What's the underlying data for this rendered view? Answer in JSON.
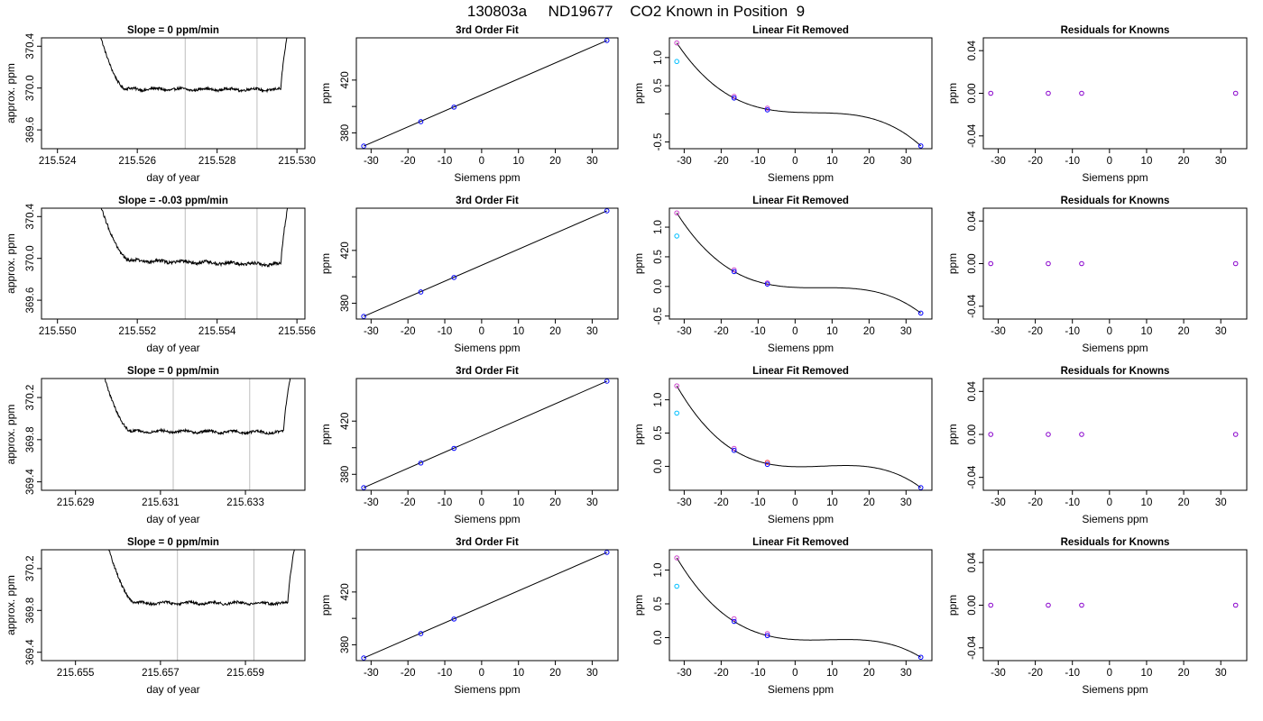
{
  "title": "130803a     ND19677    CO2 Known in Position  9",
  "colors": {
    "trace": "#000000",
    "vline": "#bebebe",
    "fit": "#000000",
    "point_blue": "#0000ff",
    "point_cyan": "#00bfff",
    "point_magenta": "#cc44cc",
    "point_purple": "#8800cc",
    "point_red": "#ff3333"
  },
  "chart_data": [
    {
      "row": 0,
      "panel": "trace",
      "type": "line",
      "title": "Slope =  0  ppm/min",
      "xlabel": "day of year",
      "ylabel": "approx. ppm",
      "xlim": [
        215.5236,
        215.5302
      ],
      "ylim": [
        369.42,
        370.48
      ],
      "xticks": [
        215.524,
        215.526,
        215.528,
        215.53
      ],
      "xticklabels": [
        "215.524",
        "215.526",
        "215.528",
        "215.530"
      ],
      "yticks": [
        369.6,
        370.0,
        370.4
      ],
      "yticklabels": [
        "369.6",
        "370.0",
        "370.4"
      ],
      "x_start": 215.525,
      "x_end": 215.5298,
      "x_plateau_start": 215.5257,
      "x_plateau_end": 215.5296,
      "plateau_level": 369.99,
      "noise": 0.012,
      "drift": -0.005,
      "trace_top": 370.6,
      "vlines": [
        215.5272,
        215.529
      ]
    },
    {
      "row": 0,
      "panel": "fit",
      "type": "scatter+line",
      "title": "3rd Order Fit",
      "xlabel": "Siemens ppm",
      "ylabel": "ppm",
      "xlim": [
        -34,
        37
      ],
      "ylim": [
        368,
        452
      ],
      "xticks": [
        -30,
        -20,
        -10,
        0,
        10,
        20,
        30
      ],
      "xticklabels": [
        "-30",
        "-20",
        "-10",
        "0",
        "10",
        "20",
        "30"
      ],
      "yticks": [
        380,
        400,
        420
      ],
      "yticklabels": [
        "380",
        "",
        "420"
      ],
      "points": [
        {
          "x": -32,
          "y": 370.0
        },
        {
          "x": -16.5,
          "y": 388.5
        },
        {
          "x": -7.5,
          "y": 399.5
        },
        {
          "x": 34,
          "y": 450.0
        }
      ],
      "line": [
        [
          -32,
          370.0
        ],
        [
          34,
          450.0
        ]
      ]
    },
    {
      "row": 0,
      "panel": "linear_removed",
      "type": "scatter+line",
      "title": "Linear Fit Removed",
      "xlabel": "Siemens ppm",
      "ylabel": "ppm",
      "xlim": [
        -34,
        37
      ],
      "ylim": [
        -0.62,
        1.35
      ],
      "xticks": [
        -30,
        -20,
        -10,
        0,
        10,
        20,
        30
      ],
      "xticklabels": [
        "-30",
        "-20",
        "-10",
        "0",
        "10",
        "20",
        "30"
      ],
      "yticks": [
        -0.5,
        0.0,
        0.5,
        1.0
      ],
      "yticklabels": [
        "-0.5",
        "",
        "0.5",
        "1.0"
      ],
      "curve": [
        [
          -32,
          1.26
        ],
        [
          -16.5,
          0.28
        ],
        [
          -7.5,
          0.08
        ],
        [
          34,
          -0.57
        ]
      ],
      "points": [
        {
          "x": -32,
          "y": 1.26,
          "c": "point_magenta"
        },
        {
          "x": -32,
          "y": 0.93,
          "c": "point_cyan"
        },
        {
          "x": -16.5,
          "y": 0.31,
          "c": "point_magenta"
        },
        {
          "x": -16.5,
          "y": 0.28,
          "c": "point_blue"
        },
        {
          "x": -7.5,
          "y": 0.1,
          "c": "point_magenta"
        },
        {
          "x": -7.5,
          "y": 0.07,
          "c": "point_blue"
        },
        {
          "x": 34,
          "y": -0.57,
          "c": "point_blue"
        }
      ]
    },
    {
      "row": 0,
      "panel": "residuals",
      "type": "scatter",
      "title": "Residuals for Knowns",
      "xlabel": "Siemens ppm",
      "ylabel": "ppm",
      "xlim": [
        -34,
        37
      ],
      "ylim": [
        -0.052,
        0.052
      ],
      "xticks": [
        -30,
        -20,
        -10,
        0,
        10,
        20,
        30
      ],
      "xticklabels": [
        "-30",
        "-20",
        "-10",
        "0",
        "10",
        "20",
        "30"
      ],
      "yticks": [
        -0.04,
        0.0,
        0.04
      ],
      "yticklabels": [
        "-0.04",
        "0.00",
        "0.04"
      ],
      "points": [
        {
          "x": -32,
          "y": 0
        },
        {
          "x": -16.5,
          "y": 0
        },
        {
          "x": -7.5,
          "y": 0
        },
        {
          "x": 34,
          "y": 0
        }
      ]
    },
    {
      "row": 1,
      "panel": "trace",
      "type": "line",
      "title": "Slope =  -0.03  ppm/min",
      "xlabel": "day of year",
      "ylabel": "approx. ppm",
      "xlim": [
        215.5496,
        215.5562
      ],
      "ylim": [
        369.42,
        370.48
      ],
      "xticks": [
        215.55,
        215.552,
        215.554,
        215.556
      ],
      "xticklabels": [
        "215.550",
        "215.552",
        "215.554",
        "215.556"
      ],
      "yticks": [
        369.6,
        370.0,
        370.4
      ],
      "yticklabels": [
        "369.6",
        "370.0",
        "370.4"
      ],
      "x_start": 215.551,
      "x_end": 215.5558,
      "x_plateau_start": 215.5518,
      "x_plateau_end": 215.5556,
      "plateau_level": 369.98,
      "noise": 0.015,
      "drift": -0.04,
      "trace_top": 370.6,
      "vlines": [
        215.5532,
        215.555
      ]
    },
    {
      "row": 1,
      "panel": "fit",
      "type": "scatter+line",
      "title": "3rd Order Fit",
      "xlabel": "Siemens ppm",
      "ylabel": "ppm",
      "xlim": [
        -34,
        37
      ],
      "ylim": [
        368,
        452
      ],
      "xticks": [
        -30,
        -20,
        -10,
        0,
        10,
        20,
        30
      ],
      "xticklabels": [
        "-30",
        "-20",
        "-10",
        "0",
        "10",
        "20",
        "30"
      ],
      "yticks": [
        380,
        400,
        420
      ],
      "yticklabels": [
        "380",
        "",
        "420"
      ],
      "points": [
        {
          "x": -32,
          "y": 370.0
        },
        {
          "x": -16.5,
          "y": 388.5
        },
        {
          "x": -7.5,
          "y": 399.5
        },
        {
          "x": 34,
          "y": 450.0
        }
      ],
      "line": [
        [
          -32,
          370.0
        ],
        [
          34,
          450.0
        ]
      ]
    },
    {
      "row": 1,
      "panel": "linear_removed",
      "type": "scatter+line",
      "title": "Linear Fit Removed",
      "xlabel": "Siemens ppm",
      "ylabel": "ppm",
      "xlim": [
        -34,
        37
      ],
      "ylim": [
        -0.55,
        1.32
      ],
      "xticks": [
        -30,
        -20,
        -10,
        0,
        10,
        20,
        30
      ],
      "xticklabels": [
        "-30",
        "-20",
        "-10",
        "0",
        "10",
        "20",
        "30"
      ],
      "yticks": [
        -0.5,
        0.0,
        0.5,
        1.0
      ],
      "yticklabels": [
        "-0.5",
        "0.0",
        "0.5",
        "1.0"
      ],
      "curve": [
        [
          -32,
          1.24
        ],
        [
          -16.5,
          0.25
        ],
        [
          -7.5,
          0.04
        ],
        [
          34,
          -0.45
        ]
      ],
      "points": [
        {
          "x": -32,
          "y": 1.24,
          "c": "point_magenta"
        },
        {
          "x": -32,
          "y": 0.85,
          "c": "point_cyan"
        },
        {
          "x": -16.5,
          "y": 0.28,
          "c": "point_magenta"
        },
        {
          "x": -16.5,
          "y": 0.25,
          "c": "point_blue"
        },
        {
          "x": -7.5,
          "y": 0.06,
          "c": "point_magenta"
        },
        {
          "x": -7.5,
          "y": 0.04,
          "c": "point_blue"
        },
        {
          "x": 34,
          "y": -0.45,
          "c": "point_blue"
        }
      ]
    },
    {
      "row": 1,
      "panel": "residuals",
      "type": "scatter",
      "title": "Residuals for Knowns",
      "xlabel": "Siemens ppm",
      "ylabel": "ppm",
      "xlim": [
        -34,
        37
      ],
      "ylim": [
        -0.052,
        0.052
      ],
      "xticks": [
        -30,
        -20,
        -10,
        0,
        10,
        20,
        30
      ],
      "xticklabels": [
        "-30",
        "-20",
        "-10",
        "0",
        "10",
        "20",
        "30"
      ],
      "yticks": [
        -0.04,
        0.0,
        0.04
      ],
      "yticklabels": [
        "-0.04",
        "0.00",
        "0.04"
      ],
      "points": [
        {
          "x": -32,
          "y": 0
        },
        {
          "x": -16.5,
          "y": 0
        },
        {
          "x": -7.5,
          "y": 0
        },
        {
          "x": 34,
          "y": 0
        }
      ]
    },
    {
      "row": 2,
      "panel": "trace",
      "type": "line",
      "title": "Slope =  0  ppm/min",
      "xlabel": "day of year",
      "ylabel": "approx. ppm",
      "xlim": [
        215.6282,
        215.6344
      ],
      "ylim": [
        369.32,
        370.38
      ],
      "xticks": [
        215.629,
        215.631,
        215.633
      ],
      "xticklabels": [
        "215.629",
        "215.631",
        "215.633"
      ],
      "yticks": [
        369.4,
        369.8,
        370.2
      ],
      "yticklabels": [
        "369.4",
        "369.8",
        "370.2"
      ],
      "x_start": 215.6296,
      "x_end": 215.6341,
      "x_plateau_start": 215.6303,
      "x_plateau_end": 215.6339,
      "plateau_level": 369.88,
      "noise": 0.012,
      "drift": -0.01,
      "trace_top": 370.5,
      "vlines": [
        215.6313,
        215.6331
      ]
    },
    {
      "row": 2,
      "panel": "fit",
      "type": "scatter+line",
      "title": "3rd Order Fit",
      "xlabel": "Siemens ppm",
      "ylabel": "ppm",
      "xlim": [
        -34,
        37
      ],
      "ylim": [
        368,
        452
      ],
      "xticks": [
        -30,
        -20,
        -10,
        0,
        10,
        20,
        30
      ],
      "xticklabels": [
        "-30",
        "-20",
        "-10",
        "0",
        "10",
        "20",
        "30"
      ],
      "yticks": [
        380,
        400,
        420
      ],
      "yticklabels": [
        "380",
        "",
        "420"
      ],
      "points": [
        {
          "x": -32,
          "y": 370.0
        },
        {
          "x": -16.5,
          "y": 388.5
        },
        {
          "x": -7.5,
          "y": 399.5
        },
        {
          "x": 34,
          "y": 450.0
        }
      ],
      "line": [
        [
          -32,
          370.0
        ],
        [
          34,
          450.0
        ]
      ]
    },
    {
      "row": 2,
      "panel": "linear_removed",
      "type": "scatter+line",
      "title": "Linear Fit Removed",
      "xlabel": "Siemens ppm",
      "ylabel": "ppm",
      "xlim": [
        -34,
        37
      ],
      "ylim": [
        -0.36,
        1.32
      ],
      "xticks": [
        -30,
        -20,
        -10,
        0,
        10,
        20,
        30
      ],
      "xticklabels": [
        "-30",
        "-20",
        "-10",
        "0",
        "10",
        "20",
        "30"
      ],
      "yticks": [
        0.0,
        0.5,
        1.0
      ],
      "yticklabels": [
        "0.0",
        "0.5",
        "1.0"
      ],
      "curve": [
        [
          -32,
          1.21
        ],
        [
          -16.5,
          0.24
        ],
        [
          -7.5,
          0.04
        ],
        [
          34,
          -0.32
        ]
      ],
      "points": [
        {
          "x": -32,
          "y": 1.21,
          "c": "point_magenta"
        },
        {
          "x": -32,
          "y": 0.8,
          "c": "point_cyan"
        },
        {
          "x": -16.5,
          "y": 0.27,
          "c": "point_magenta"
        },
        {
          "x": -16.5,
          "y": 0.24,
          "c": "point_blue"
        },
        {
          "x": -7.5,
          "y": 0.06,
          "c": "point_red"
        },
        {
          "x": -7.5,
          "y": 0.03,
          "c": "point_blue"
        },
        {
          "x": 34,
          "y": -0.32,
          "c": "point_blue"
        }
      ]
    },
    {
      "row": 2,
      "panel": "residuals",
      "type": "scatter",
      "title": "Residuals for Knowns",
      "xlabel": "Siemens ppm",
      "ylabel": "ppm",
      "xlim": [
        -34,
        37
      ],
      "ylim": [
        -0.052,
        0.052
      ],
      "xticks": [
        -30,
        -20,
        -10,
        0,
        10,
        20,
        30
      ],
      "xticklabels": [
        "-30",
        "-20",
        "-10",
        "0",
        "10",
        "20",
        "30"
      ],
      "yticks": [
        -0.04,
        0.0,
        0.04
      ],
      "yticklabels": [
        "-0.04",
        "0.00",
        "0.04"
      ],
      "points": [
        {
          "x": -32,
          "y": 0
        },
        {
          "x": -16.5,
          "y": 0
        },
        {
          "x": -7.5,
          "y": 0
        },
        {
          "x": 34,
          "y": 0
        }
      ]
    },
    {
      "row": 3,
      "panel": "trace",
      "type": "line",
      "title": "Slope =  0  ppm/min",
      "xlabel": "day of year",
      "ylabel": "approx. ppm",
      "xlim": [
        215.6542,
        215.6604
      ],
      "ylim": [
        369.32,
        370.38
      ],
      "xticks": [
        215.655,
        215.657,
        215.659
      ],
      "xticklabels": [
        "215.655",
        "215.657",
        "215.659"
      ],
      "yticks": [
        369.4,
        369.8,
        370.2
      ],
      "yticklabels": [
        "369.4",
        "369.8",
        "370.2"
      ],
      "x_start": 215.6557,
      "x_end": 215.6602,
      "x_plateau_start": 215.6564,
      "x_plateau_end": 215.66,
      "plateau_level": 369.87,
      "noise": 0.012,
      "drift": 0.0,
      "trace_top": 370.5,
      "vlines": [
        215.6574,
        215.6592
      ]
    },
    {
      "row": 3,
      "panel": "fit",
      "type": "scatter+line",
      "title": "3rd Order Fit",
      "xlabel": "Siemens ppm",
      "ylabel": "ppm",
      "xlim": [
        -34,
        37
      ],
      "ylim": [
        368,
        452
      ],
      "xticks": [
        -30,
        -20,
        -10,
        0,
        10,
        20,
        30
      ],
      "xticklabels": [
        "-30",
        "-20",
        "-10",
        "0",
        "10",
        "20",
        "30"
      ],
      "yticks": [
        380,
        400,
        420
      ],
      "yticklabels": [
        "380",
        "",
        "420"
      ],
      "points": [
        {
          "x": -32,
          "y": 370.0
        },
        {
          "x": -16.5,
          "y": 388.5
        },
        {
          "x": -7.5,
          "y": 399.5
        },
        {
          "x": 34,
          "y": 450.0
        }
      ],
      "line": [
        [
          -32,
          370.0
        ],
        [
          34,
          450.0
        ]
      ]
    },
    {
      "row": 3,
      "panel": "linear_removed",
      "type": "scatter+line",
      "title": "Linear Fit Removed",
      "xlabel": "Siemens ppm",
      "ylabel": "ppm",
      "xlim": [
        -34,
        37
      ],
      "ylim": [
        -0.34,
        1.3
      ],
      "xticks": [
        -30,
        -20,
        -10,
        0,
        10,
        20,
        30
      ],
      "xticklabels": [
        "-30",
        "-20",
        "-10",
        "0",
        "10",
        "20",
        "30"
      ],
      "yticks": [
        0.0,
        0.5,
        1.0
      ],
      "yticklabels": [
        "0.0",
        "0.5",
        "1.0"
      ],
      "curve": [
        [
          -32,
          1.18
        ],
        [
          -16.5,
          0.24
        ],
        [
          -7.5,
          0.03
        ],
        [
          34,
          -0.29
        ]
      ],
      "points": [
        {
          "x": -32,
          "y": 1.18,
          "c": "point_magenta"
        },
        {
          "x": -32,
          "y": 0.76,
          "c": "point_cyan"
        },
        {
          "x": -16.5,
          "y": 0.28,
          "c": "point_magenta"
        },
        {
          "x": -16.5,
          "y": 0.24,
          "c": "point_blue"
        },
        {
          "x": -7.5,
          "y": 0.06,
          "c": "point_magenta"
        },
        {
          "x": -7.5,
          "y": 0.03,
          "c": "point_blue"
        },
        {
          "x": 34,
          "y": -0.29,
          "c": "point_blue"
        }
      ]
    },
    {
      "row": 3,
      "panel": "residuals",
      "type": "scatter",
      "title": "Residuals for Knowns",
      "xlabel": "Siemens ppm",
      "ylabel": "ppm",
      "xlim": [
        -34,
        37
      ],
      "ylim": [
        -0.052,
        0.052
      ],
      "xticks": [
        -30,
        -20,
        -10,
        0,
        10,
        20,
        30
      ],
      "xticklabels": [
        "-30",
        "-20",
        "-10",
        "0",
        "10",
        "20",
        "30"
      ],
      "yticks": [
        -0.04,
        0.0,
        0.04
      ],
      "yticklabels": [
        "-0.04",
        "0.00",
        "0.04"
      ],
      "points": [
        {
          "x": -32,
          "y": 0
        },
        {
          "x": -16.5,
          "y": 0
        },
        {
          "x": -7.5,
          "y": 0
        },
        {
          "x": 34,
          "y": 0
        }
      ]
    }
  ]
}
